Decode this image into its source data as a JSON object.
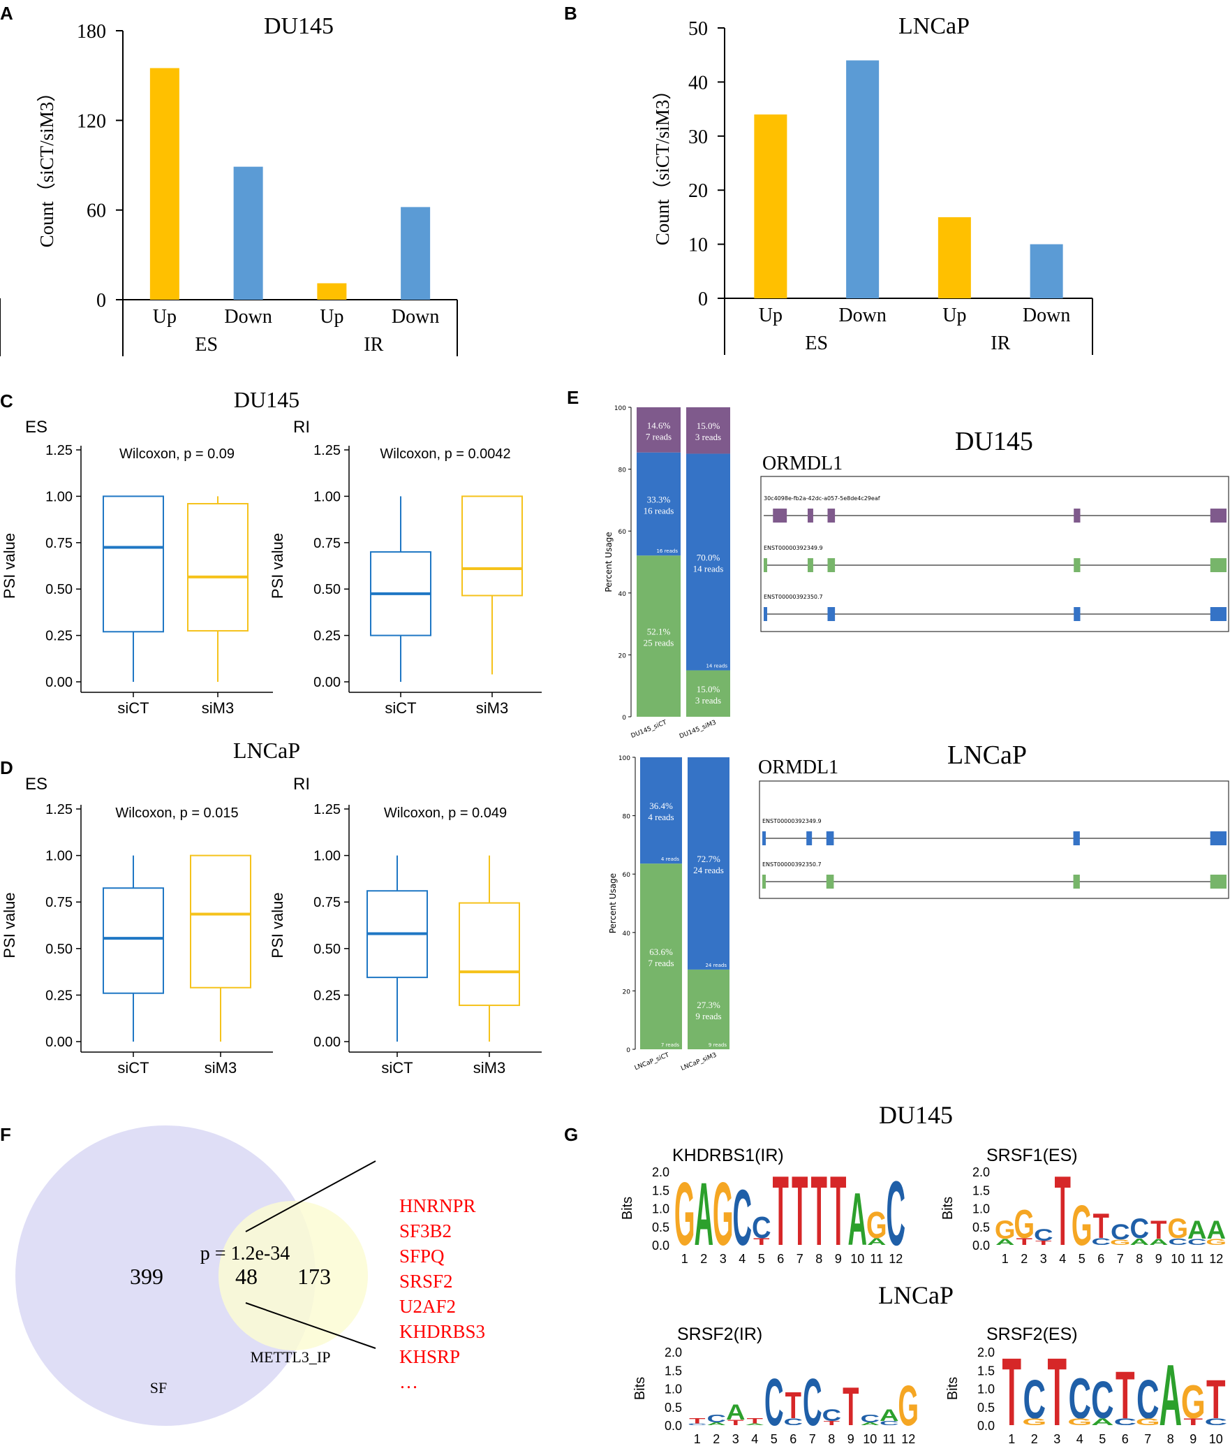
{
  "colors": {
    "yellow": "#FFC000",
    "blue": "#5B9BD5",
    "box_blue": "#1F77C4",
    "box_yellow": "#F5C21B",
    "iso_purple": "#7F5A8C",
    "iso_blue": "#3573C6",
    "iso_green": "#77B56A",
    "venn_left": "#DCDAF5",
    "venn_right": "#FCFCD4",
    "red": "#FF0000",
    "nt_A": "#2CA02C",
    "nt_C": "#1F5FA8",
    "nt_G": "#F5A623",
    "nt_T": "#D62728"
  },
  "panels": {
    "A": "A",
    "B": "B",
    "C": "C",
    "D": "D",
    "E": "E",
    "F": "F",
    "G": "G"
  },
  "chart_data": [
    {
      "id": "A",
      "type": "bar",
      "title": "DU145",
      "ylabel": "Count（siCT/siM3）",
      "ylim": [
        0,
        180
      ],
      "yticks": [
        0,
        60,
        120,
        180
      ],
      "categories": [
        "Up",
        "Down",
        "Up",
        "Down"
      ],
      "groups": [
        "ES",
        "IR"
      ],
      "values": [
        155,
        89,
        11,
        62
      ]
    },
    {
      "id": "B",
      "type": "bar",
      "title": "LNCaP",
      "ylabel": "Count（siCT/siM3）",
      "ylim": [
        0,
        50
      ],
      "yticks": [
        0,
        10,
        20,
        30,
        40,
        50
      ],
      "categories": [
        "Up",
        "Down",
        "Up",
        "Down"
      ],
      "groups": [
        "ES",
        "IR"
      ],
      "values": [
        34,
        44,
        15,
        10
      ]
    },
    {
      "id": "C-ES",
      "type": "box",
      "title": "DU145",
      "subtitle": "ES",
      "ylabel": "PSI value",
      "ylim": [
        0,
        1.25
      ],
      "yticks": [
        "0.00",
        "0.25",
        "0.50",
        "0.75",
        "1.00",
        "1.25"
      ],
      "stat": "Wilcoxon, p = 0.09",
      "boxes": [
        {
          "name": "siCT",
          "min": 0.0,
          "q1": 0.27,
          "median": 0.725,
          "q3": 1.0,
          "max": 1.0
        },
        {
          "name": "siM3",
          "min": 0.0,
          "q1": 0.275,
          "median": 0.565,
          "q3": 0.96,
          "max": 1.0
        }
      ]
    },
    {
      "id": "C-RI",
      "type": "box",
      "subtitle": "RI",
      "ylabel": "PSI value",
      "ylim": [
        0,
        1.25
      ],
      "yticks": [
        "0.00",
        "0.25",
        "0.50",
        "0.75",
        "1.00",
        "1.25"
      ],
      "stat": "Wilcoxon, p = 0.0042",
      "boxes": [
        {
          "name": "siCT",
          "min": 0.0,
          "q1": 0.25,
          "median": 0.475,
          "q3": 0.7,
          "max": 1.0
        },
        {
          "name": "siM3",
          "min": 0.04,
          "q1": 0.465,
          "median": 0.61,
          "q3": 1.0,
          "max": 1.0
        }
      ]
    },
    {
      "id": "D-ES",
      "type": "box",
      "title": "LNCaP",
      "subtitle": "ES",
      "ylabel": "PSI value",
      "ylim": [
        0,
        1.25
      ],
      "yticks": [
        "0.00",
        "0.25",
        "0.50",
        "0.75",
        "1.00",
        "1.25"
      ],
      "stat": "Wilcoxon, p = 0.015",
      "boxes": [
        {
          "name": "siCT",
          "min": 0.0,
          "q1": 0.26,
          "median": 0.555,
          "q3": 0.825,
          "max": 1.0
        },
        {
          "name": "siM3",
          "min": 0.0,
          "q1": 0.29,
          "median": 0.685,
          "q3": 1.0,
          "max": 1.0
        }
      ]
    },
    {
      "id": "D-RI",
      "type": "box",
      "subtitle": "RI",
      "ylabel": "PSI value",
      "ylim": [
        0,
        1.25
      ],
      "yticks": [
        "0.00",
        "0.25",
        "0.50",
        "0.75",
        "1.00",
        "1.25"
      ],
      "stat": "Wilcoxon, p = 0.049",
      "boxes": [
        {
          "name": "siCT",
          "min": 0.0,
          "q1": 0.345,
          "median": 0.58,
          "q3": 0.81,
          "max": 1.0
        },
        {
          "name": "siM3",
          "min": 0.0,
          "q1": 0.195,
          "median": 0.375,
          "q3": 0.745,
          "max": 1.0
        }
      ]
    }
  ],
  "isoform": [
    {
      "title": "DU145",
      "gene": "ORMDL1",
      "ylabel": "Percent Usage",
      "yticks": [
        "0",
        "20",
        "40",
        "60",
        "80",
        "100"
      ],
      "samples": [
        {
          "name": "DU145_siCT",
          "segments": [
            {
              "pct": 52.1,
              "color": "iso_green",
              "line1": "52.1%",
              "line2": "25 reads",
              "small": ""
            },
            {
              "pct": 33.3,
              "color": "iso_blue",
              "line1": "33.3%",
              "line2": "16 reads",
              "small": "16 reads"
            },
            {
              "pct": 14.6,
              "color": "iso_purple",
              "line1": "14.6%",
              "line2": "7 reads",
              "small": ""
            }
          ]
        },
        {
          "name": "DU145_siM3",
          "segments": [
            {
              "pct": 15.0,
              "color": "iso_green",
              "line1": "15.0%",
              "line2": "3 reads",
              "small": ""
            },
            {
              "pct": 70.0,
              "color": "iso_blue",
              "line1": "70.0%",
              "line2": "14 reads",
              "small": "14 reads"
            },
            {
              "pct": 15.0,
              "color": "iso_purple",
              "line1": "15.0%",
              "line2": "3 reads",
              "small": ""
            }
          ]
        }
      ],
      "transcripts": [
        {
          "id": "30c4098e-fb2a-42dc-a057-5e8de4c29eaf",
          "color": "iso_purple",
          "exons": [
            [
              0.02,
              0.05
            ],
            [
              0.095,
              0.107
            ],
            [
              0.138,
              0.154
            ],
            [
              0.67,
              0.684
            ],
            [
              0.965,
              1.0
            ]
          ]
        },
        {
          "id": "ENST00000392349.9",
          "color": "iso_green",
          "exons": [
            [
              0.0,
              0.007
            ],
            [
              0.095,
              0.107
            ],
            [
              0.138,
              0.154
            ],
            [
              0.67,
              0.684
            ],
            [
              0.965,
              1.0
            ]
          ]
        },
        {
          "id": "ENST00000392350.7",
          "color": "iso_blue",
          "exons": [
            [
              0.0,
              0.007
            ],
            [
              0.138,
              0.154
            ],
            [
              0.67,
              0.684
            ],
            [
              0.965,
              1.0
            ]
          ]
        }
      ]
    },
    {
      "title": "LNCaP",
      "gene": "ORMDL1",
      "ylabel": "Percent Usage",
      "yticks": [
        "0",
        "20",
        "40",
        "60",
        "80",
        "100"
      ],
      "samples": [
        {
          "name": "LNCaP_siCT",
          "segments": [
            {
              "pct": 63.6,
              "color": "iso_green",
              "line1": "63.6%",
              "line2": "7 reads",
              "small": "7 reads"
            },
            {
              "pct": 36.4,
              "color": "iso_blue",
              "line1": "36.4%",
              "line2": "4 reads",
              "small": "4 reads"
            }
          ]
        },
        {
          "name": "LNCaP_siM3",
          "segments": [
            {
              "pct": 27.3,
              "color": "iso_green",
              "line1": "27.3%",
              "line2": "9 reads",
              "small": "9 reads"
            },
            {
              "pct": 72.7,
              "color": "iso_blue",
              "line1": "72.7%",
              "line2": "24 reads",
              "small": "24 reads"
            }
          ]
        }
      ],
      "transcripts": [
        {
          "id": "ENST00000392349.9",
          "color": "iso_blue",
          "exons": [
            [
              0.0,
              0.007
            ],
            [
              0.095,
              0.107
            ],
            [
              0.138,
              0.154
            ],
            [
              0.67,
              0.684
            ],
            [
              0.965,
              1.0
            ]
          ]
        },
        {
          "id": "ENST00000392350.7",
          "color": "iso_green",
          "exons": [
            [
              0.0,
              0.007
            ],
            [
              0.138,
              0.154
            ],
            [
              0.67,
              0.684
            ],
            [
              0.965,
              1.0
            ]
          ]
        }
      ]
    }
  ],
  "venn": {
    "left_label": "SF",
    "right_label": "METTL3_IP",
    "left_only": "399",
    "overlap": "48",
    "right_only": "173",
    "pvalue": "p = 1.2e-34",
    "genes": [
      "HNRNPR",
      "SF3B2",
      "SFPQ",
      "SRSF2",
      "U2AF2",
      "KHDRBS3",
      "KHSRP",
      "…"
    ]
  },
  "motifs": {
    "title_top": "DU145",
    "title_bottom": "LNCaP",
    "ylabel": "Bits",
    "yticks": [
      "0.0",
      "0.5",
      "1.0",
      "1.5",
      "2.0"
    ],
    "logos": [
      {
        "title": "KHDRBS1(IR)",
        "positions": [
          "G",
          "A",
          "G",
          "C",
          "C",
          "T",
          "T",
          "T",
          "T",
          "A",
          "G",
          "C"
        ],
        "heights": [
          1.8,
          1.8,
          1.8,
          1.6,
          0.8,
          2.0,
          2.0,
          2.0,
          2.0,
          1.5,
          0.95,
          1.85
        ],
        "minor": [
          "",
          "",
          "",
          "",
          "T",
          "",
          "",
          "",
          "",
          "",
          "A",
          ""
        ]
      },
      {
        "title": "SRSF1(ES)",
        "positions": [
          "G",
          "G",
          "C",
          "T",
          "G",
          "T",
          "C",
          "C",
          "T",
          "G",
          "A",
          "A"
        ],
        "heights": [
          0.7,
          1.0,
          0.45,
          2.0,
          1.15,
          0.9,
          0.6,
          0.75,
          0.7,
          0.75,
          0.7,
          0.7
        ],
        "minor": [
          "A",
          "T",
          "T",
          "",
          "",
          "C",
          "G",
          "A",
          "A",
          "C",
          "C",
          "G"
        ]
      },
      {
        "title": "SRSF2(IR)",
        "positions": [
          "T",
          "C",
          "A",
          "T",
          "C",
          "T",
          "C",
          "C",
          "T",
          "C",
          "A",
          "G"
        ],
        "heights": [
          0.2,
          0.3,
          0.6,
          0.2,
          1.35,
          0.95,
          1.35,
          0.45,
          1.1,
          0.3,
          0.45,
          1.15
        ],
        "minor": [
          "C",
          "A",
          "T",
          "A",
          "",
          "C",
          "",
          "T",
          "",
          "A",
          "C",
          ""
        ]
      },
      {
        "title": "SRSF2(ES)",
        "positions": [
          "T",
          "C",
          "T",
          "C",
          "C",
          "T",
          "C",
          "A",
          "G",
          "T"
        ],
        "heights": [
          1.95,
          1.3,
          1.95,
          1.35,
          1.25,
          1.55,
          1.3,
          1.75,
          1.15,
          1.3
        ],
        "minor": [
          "",
          "G",
          "",
          "G",
          "A",
          "C",
          "G",
          "",
          "T",
          "C"
        ]
      }
    ]
  }
}
